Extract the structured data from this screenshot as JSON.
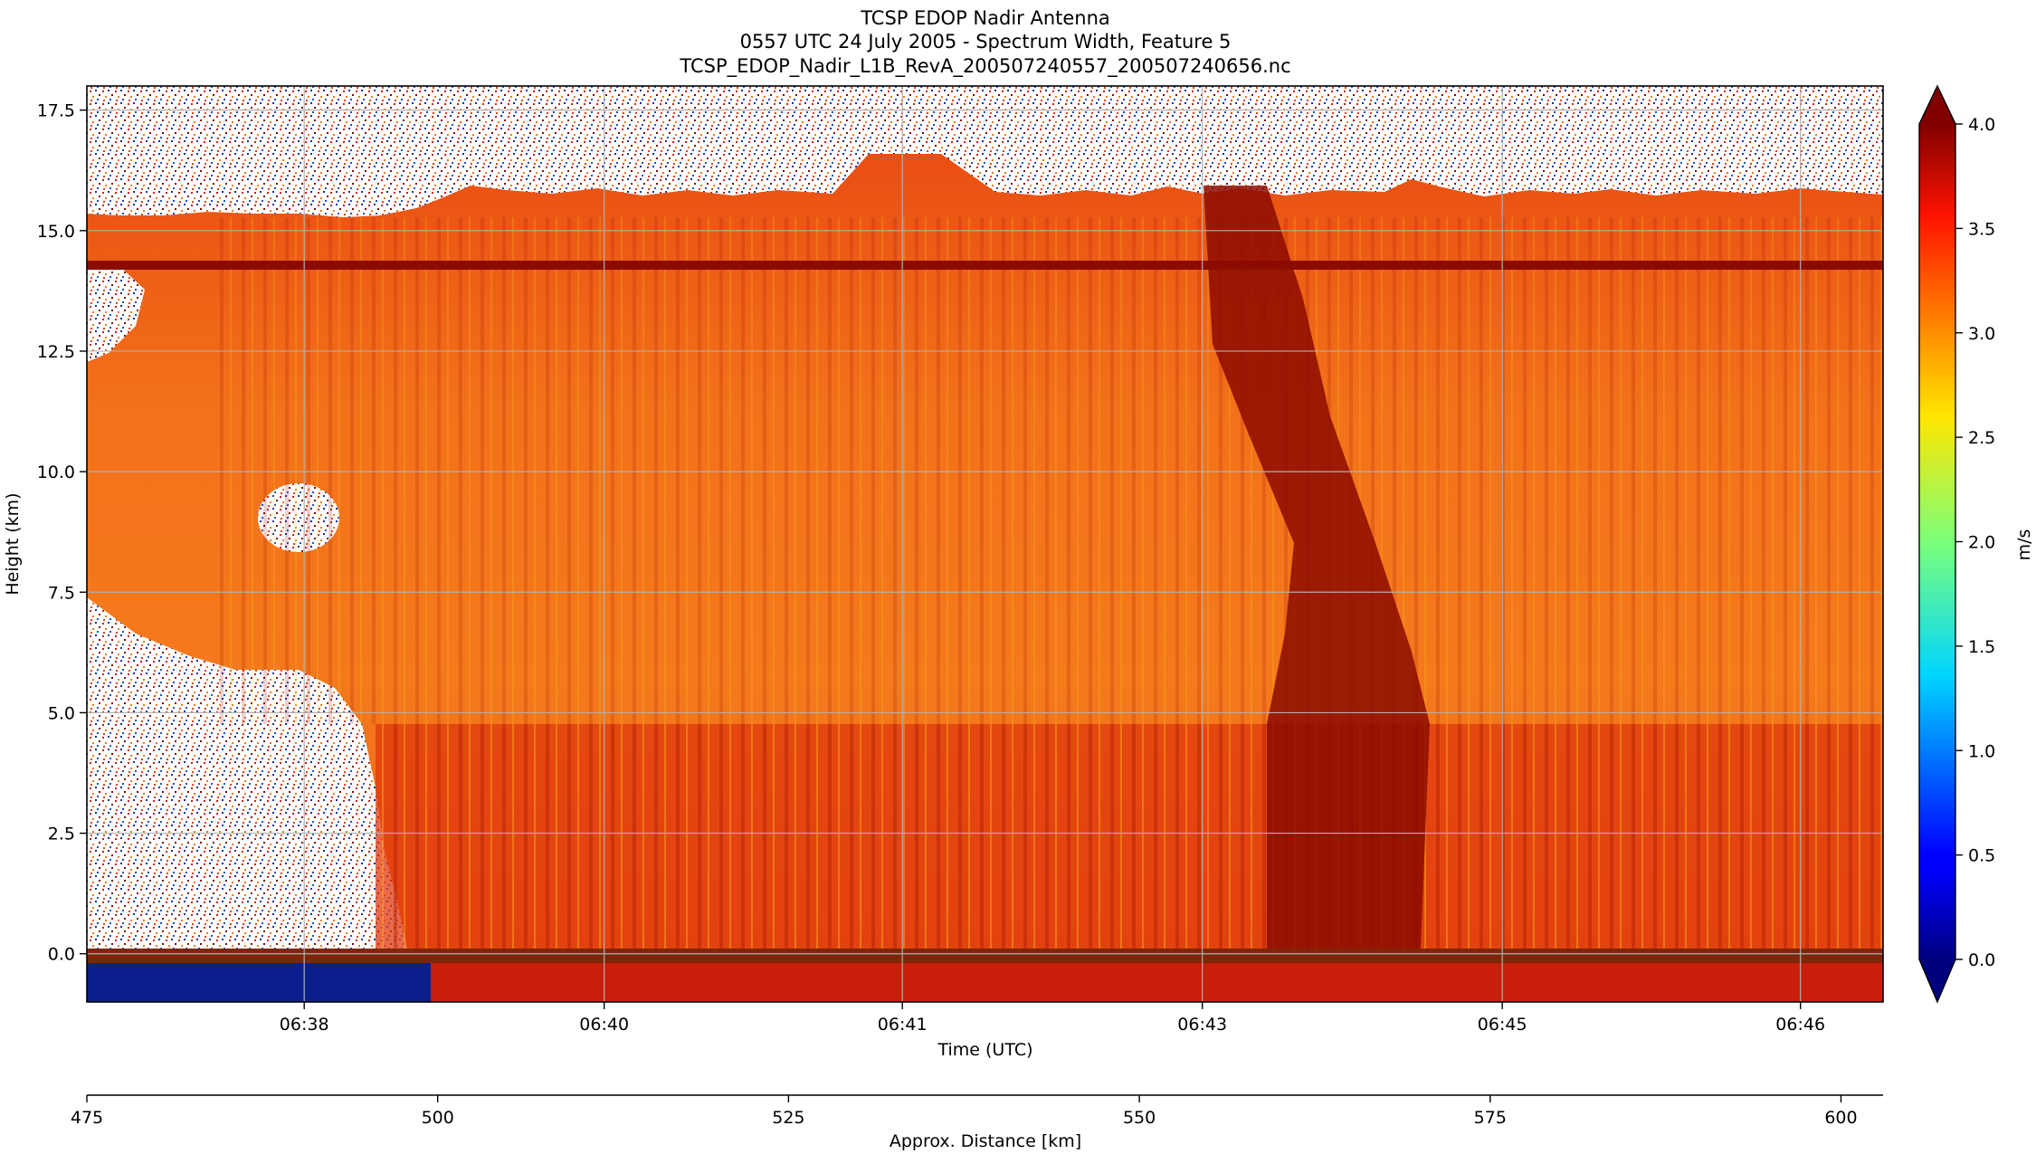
{
  "chart_data": {
    "type": "heatmap",
    "title_lines": [
      "TCSP EDOP Nadir Antenna",
      "0557 UTC 24 July 2005 - Spectrum Width, Feature 5",
      "TCSP_EDOP_Nadir_L1B_RevA_200507240557_200507240656.nc"
    ],
    "xlabel": "Time (UTC)",
    "ylabel": "Height (km)",
    "x_ticks": [
      "06:38",
      "06:40",
      "06:41",
      "06:43",
      "06:45",
      "06:46"
    ],
    "y_ticks": [
      "0.0",
      "2.5",
      "5.0",
      "7.5",
      "10.0",
      "12.5",
      "15.0",
      "17.5"
    ],
    "ylim": [
      -1.0,
      18.0
    ],
    "grid": true,
    "x2label": "Approx. Distance [km]",
    "x2_ticks": [
      "475",
      "500",
      "525",
      "550",
      "575",
      "600"
    ],
    "x2lim": [
      475,
      603
    ],
    "colorbar": {
      "label": "m/s",
      "ticks": [
        "0.0",
        "0.5",
        "1.0",
        "1.5",
        "2.0",
        "2.5",
        "3.0",
        "3.5",
        "4.0"
      ],
      "range": [
        0.0,
        4.0
      ],
      "colormap": "jet",
      "extend": "both"
    },
    "colors": {
      "fill": "#f26a16",
      "dark_band": "#8c0b00",
      "upper_band": "#e84b10",
      "clear_air": "#ffffff",
      "surface_strip": "#7d2708",
      "subsurface": "#0a1f8c"
    }
  }
}
